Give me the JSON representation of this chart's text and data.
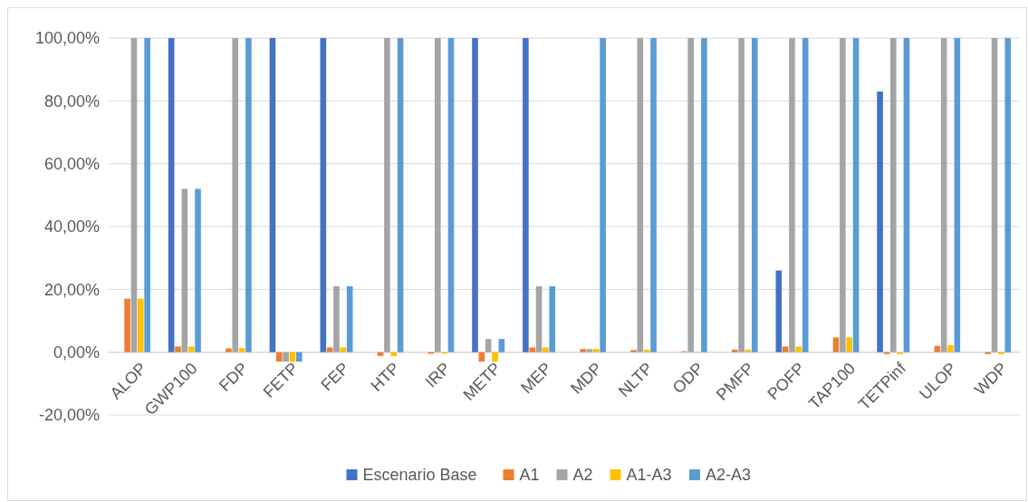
{
  "chart_data": {
    "type": "bar",
    "categories": [
      "ALOP",
      "GWP100",
      "FDP",
      "FETP",
      "FEP",
      "HTP",
      "IRP",
      "METP",
      "MEP",
      "MDP",
      "NLTP",
      "ODP",
      "PMFP",
      "POFP",
      "TAP100",
      "TETPinf",
      "ULOP",
      "WDP"
    ],
    "series": [
      {
        "name": "Escenario Base",
        "color": "#4472c4",
        "values": [
          0,
          100,
          0,
          100,
          100,
          0,
          0,
          100,
          100,
          0,
          0,
          0,
          0,
          26,
          0,
          83,
          0,
          0
        ]
      },
      {
        "name": "A1",
        "color": "#ed7d31",
        "values": [
          17,
          1.8,
          1.2,
          -3,
          1.5,
          -1.2,
          -0.5,
          -3,
          1.5,
          1,
          0.7,
          0.3,
          0.8,
          1.8,
          4.7,
          -0.6,
          2,
          -0.6
        ]
      },
      {
        "name": "A2",
        "color": "#a5a5a5",
        "values": [
          100,
          52,
          100,
          -3,
          21,
          100,
          100,
          4.2,
          21,
          1,
          100,
          100,
          100,
          100,
          100,
          100,
          100,
          100
        ]
      },
      {
        "name": "A1-A3",
        "color": "#ffc000",
        "values": [
          17,
          1.8,
          1.3,
          -3,
          1.5,
          -1.2,
          -0.5,
          -3,
          1.5,
          1,
          0.8,
          0.2,
          0.8,
          1.8,
          4.7,
          -0.6,
          2.2,
          -0.6
        ]
      },
      {
        "name": "A2-A3",
        "color": "#5b9bd5",
        "values": [
          100,
          52,
          100,
          -3,
          21,
          100,
          100,
          4.2,
          21,
          100,
          100,
          100,
          100,
          100,
          100,
          100,
          100,
          100
        ]
      }
    ],
    "ylim": [
      -20,
      100
    ],
    "yticks": [
      {
        "value": -20,
        "label": "-20,00%"
      },
      {
        "value": 0,
        "label": "0,00%"
      },
      {
        "value": 20,
        "label": "20,00%"
      },
      {
        "value": 40,
        "label": "40,00%"
      },
      {
        "value": 60,
        "label": "60,00%"
      },
      {
        "value": 80,
        "label": "80,00%"
      },
      {
        "value": 100,
        "label": "100,00%"
      }
    ],
    "grid": "y",
    "legend": "bottom"
  }
}
